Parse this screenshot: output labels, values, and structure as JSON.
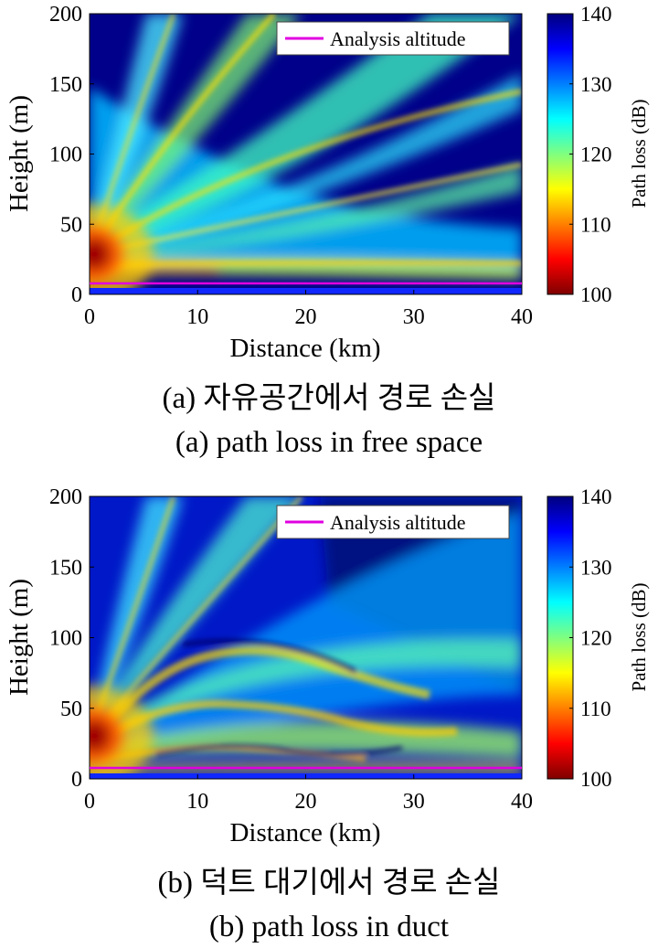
{
  "chart_data": [
    {
      "type": "heatmap",
      "title": "",
      "xlabel": "Distance (km)",
      "ylabel": "Height (m)",
      "xlim": [
        0,
        40
      ],
      "ylim": [
        0,
        200
      ],
      "xticks": [
        "0",
        "10",
        "20",
        "30",
        "40"
      ],
      "yticks": [
        "0",
        "50",
        "100",
        "150",
        "200"
      ],
      "colorbar": {
        "label": "Path loss (dB)",
        "range": [
          100,
          140
        ],
        "ticks": [
          "100",
          "110",
          "120",
          "130",
          "140"
        ],
        "colormap": "jet"
      },
      "legend": {
        "entries": [
          "Analysis altitude"
        ],
        "placement": "top-right",
        "color": "#e000e0"
      },
      "analysis_altitude_m": 8,
      "source_height_m": 32,
      "environment": "free space"
    },
    {
      "type": "heatmap",
      "title": "",
      "xlabel": "Distance (km)",
      "ylabel": "Height (m)",
      "xlim": [
        0,
        40
      ],
      "ylim": [
        0,
        200
      ],
      "xticks": [
        "0",
        "10",
        "20",
        "30",
        "40"
      ],
      "yticks": [
        "0",
        "50",
        "100",
        "150",
        "200"
      ],
      "colorbar": {
        "label": "Path loss (dB)",
        "range": [
          100,
          140
        ],
        "ticks": [
          "100",
          "110",
          "120",
          "130",
          "140"
        ],
        "colormap": "jet"
      },
      "legend": {
        "entries": [
          "Analysis altitude"
        ],
        "placement": "top-right",
        "color": "#e000e0"
      },
      "analysis_altitude_m": 8,
      "source_height_m": 32,
      "environment": "duct"
    }
  ],
  "captions": {
    "a_korean": "(a) 자유공간에서 경로 손실",
    "a_english": "(a) path loss in free space",
    "b_korean": "(b) 덕트 대기에서 경로 손실",
    "b_english": "(b) path loss in duct"
  }
}
